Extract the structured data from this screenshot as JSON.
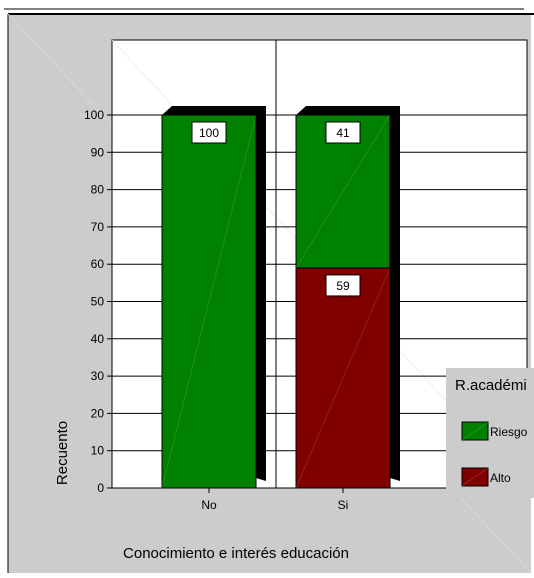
{
  "chart_data": {
    "type": "bar",
    "stacked": true,
    "percent_scale": true,
    "categories": [
      "No",
      "Si"
    ],
    "series": [
      {
        "name": "Alto",
        "values": [
          0,
          59
        ],
        "color": "#800000"
      },
      {
        "name": "Riesgo",
        "values": [
          100,
          41
        ],
        "color": "#008000"
      }
    ],
    "data_labels": [
      {
        "category": "No",
        "series": "Riesgo",
        "text": "100"
      },
      {
        "category": "Si",
        "series": "Riesgo",
        "text": "41"
      },
      {
        "category": "Si",
        "series": "Alto",
        "text": "59"
      }
    ],
    "y_ticks": [
      "0",
      "10",
      "20",
      "30",
      "40",
      "50",
      "60",
      "70",
      "80",
      "90",
      "100"
    ],
    "ylim": [
      0,
      100
    ],
    "xlabel": "Conocimiento e interés educación",
    "ylabel": "Recuento",
    "legend": {
      "title": "R.académi",
      "position": "right",
      "items": [
        {
          "label": "Riesgo",
          "color": "#008000"
        },
        {
          "label": "Alto",
          "color": "#800000"
        }
      ]
    },
    "grid": true
  },
  "colors": {
    "background": "#cccccc",
    "plot_background": "#ffffff",
    "bar_shadow": "#000000"
  }
}
